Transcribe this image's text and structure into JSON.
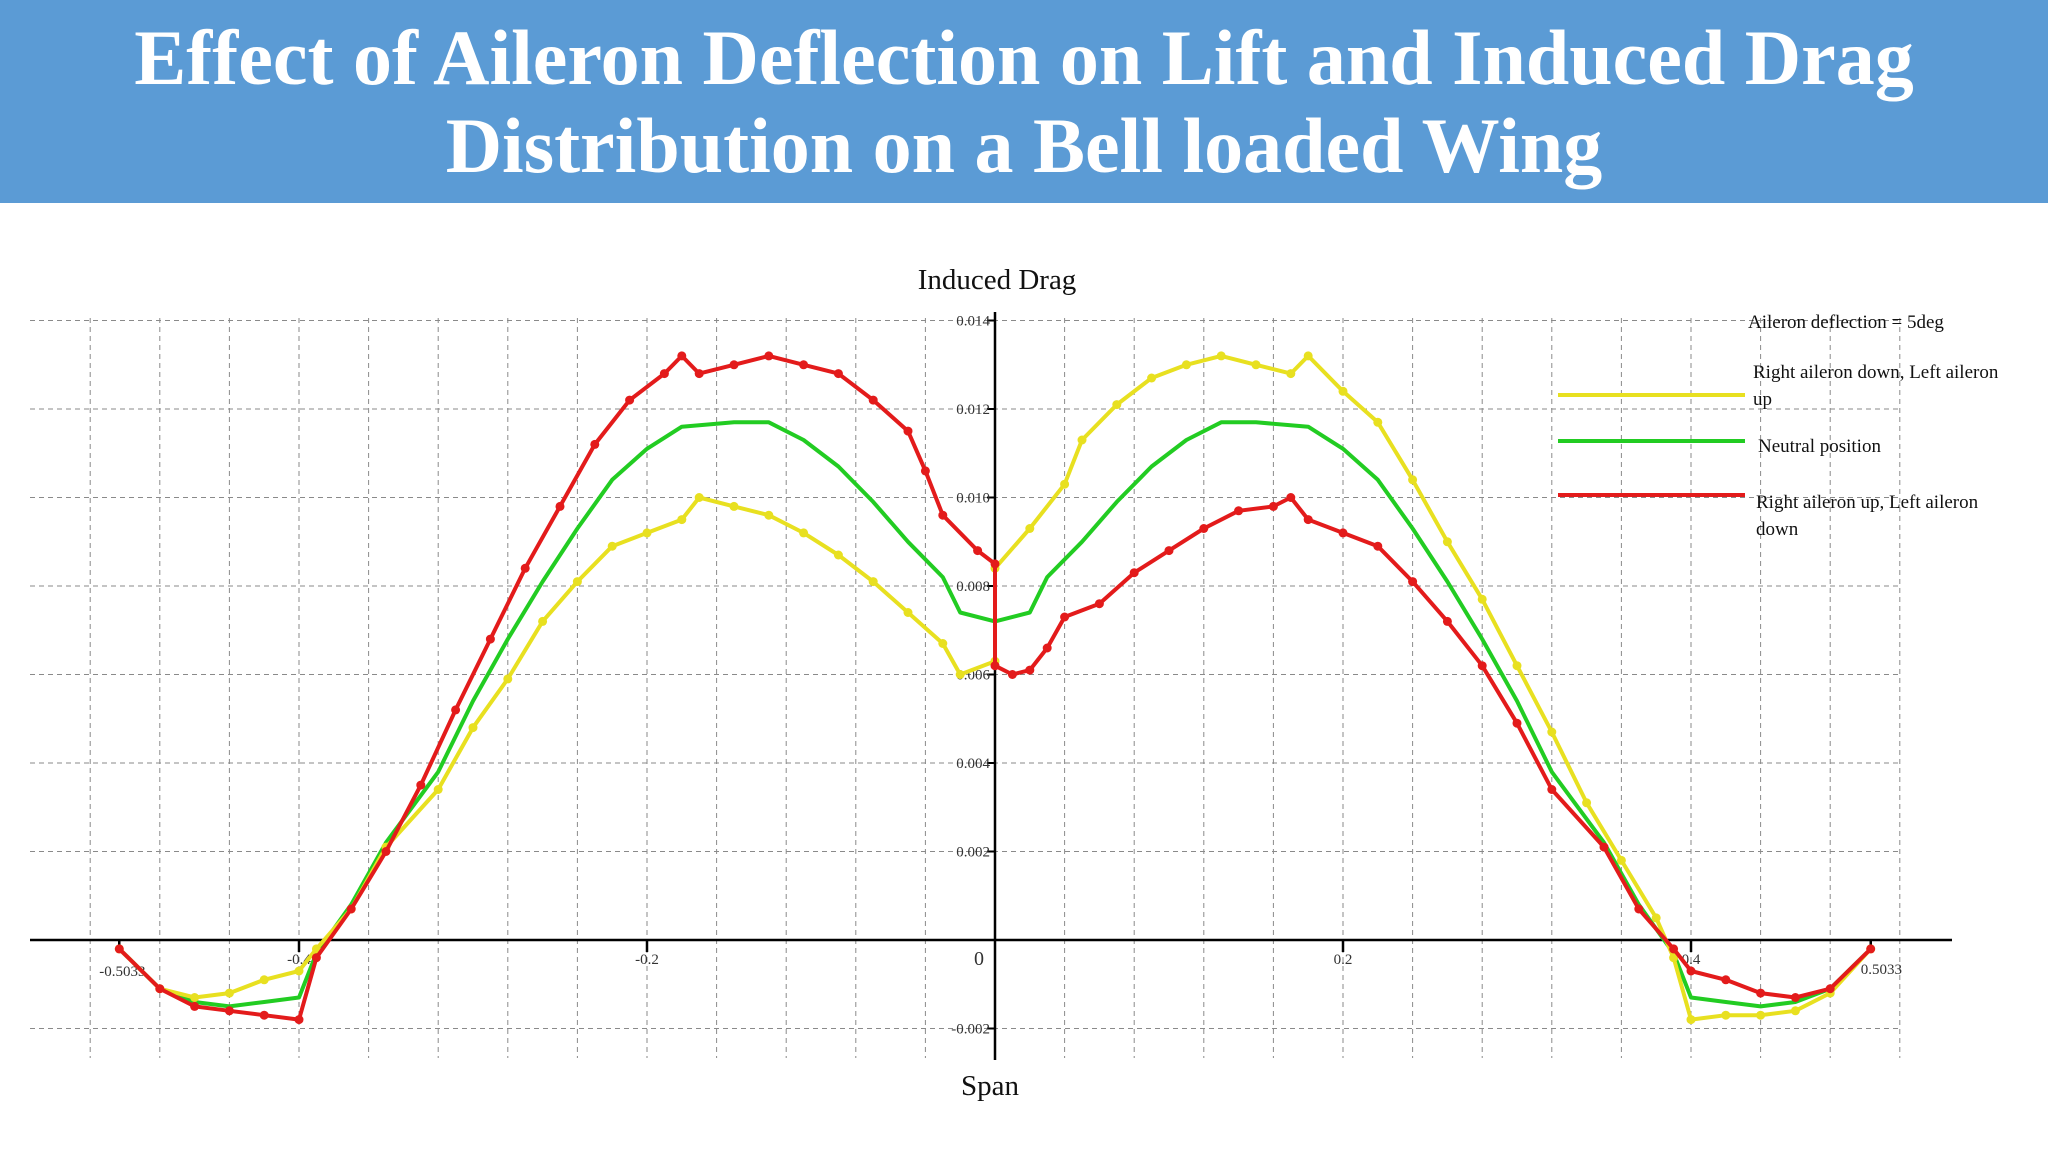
{
  "header": {
    "title_line1": "Effect of Aileron Deflection on Lift and Induced Drag",
    "title_line2": "Distribution on a Bell loaded Wing"
  },
  "chart_data": {
    "type": "line",
    "title": "Induced Drag",
    "xlabel": "Span",
    "ylabel": "",
    "xlim": [
      -0.5033,
      0.5033
    ],
    "ylim": [
      -0.002,
      0.014
    ],
    "x_ticks": [
      -0.5033,
      -0.4,
      -0.2,
      0,
      0.2,
      0.4,
      0.5033
    ],
    "x_tick_labels": [
      "-0.5033",
      "-0.4",
      "-0.2",
      "0",
      "0.2",
      "0.4",
      "0.5033"
    ],
    "y_ticks": [
      -0.002,
      0.002,
      0.004,
      0.006,
      0.008,
      0.01,
      0.012,
      0.014
    ],
    "y_tick_labels": [
      "-0.002",
      "0.002",
      "0.004",
      "0.006",
      "0.008",
      "0.010",
      "0.012",
      "0.014"
    ],
    "grid": true,
    "legend_placement": "right",
    "legend_note": "Aileron deflection = 5deg",
    "series": [
      {
        "name": "Right aileron down, Left aileron up",
        "color": "#e8e020",
        "markers": true,
        "points": [
          [
            -0.5033,
            -0.0002
          ],
          [
            -0.48,
            -0.0011
          ],
          [
            -0.46,
            -0.0013
          ],
          [
            -0.44,
            -0.0012
          ],
          [
            -0.42,
            -0.0009
          ],
          [
            -0.4,
            -0.0007
          ],
          [
            -0.39,
            -0.0002
          ],
          [
            -0.37,
            0.0007
          ],
          [
            -0.35,
            0.0021
          ],
          [
            -0.32,
            0.0034
          ],
          [
            -0.3,
            0.0048
          ],
          [
            -0.28,
            0.0059
          ],
          [
            -0.26,
            0.0072
          ],
          [
            -0.24,
            0.0081
          ],
          [
            -0.22,
            0.0089
          ],
          [
            -0.2,
            0.0092
          ],
          [
            -0.18,
            0.0095
          ],
          [
            -0.17,
            0.01
          ],
          [
            -0.15,
            0.0098
          ],
          [
            -0.13,
            0.0096
          ],
          [
            -0.11,
            0.0092
          ],
          [
            -0.09,
            0.0087
          ],
          [
            -0.07,
            0.0081
          ],
          [
            -0.05,
            0.0074
          ],
          [
            -0.03,
            0.0067
          ],
          [
            -0.02,
            0.006
          ],
          [
            0.0,
            0.0063
          ],
          [
            0.0,
            0.0084
          ],
          [
            0.02,
            0.0093
          ],
          [
            0.04,
            0.0103
          ],
          [
            0.05,
            0.0113
          ],
          [
            0.07,
            0.0121
          ],
          [
            0.09,
            0.0127
          ],
          [
            0.11,
            0.013
          ],
          [
            0.13,
            0.0132
          ],
          [
            0.15,
            0.013
          ],
          [
            0.17,
            0.0128
          ],
          [
            0.18,
            0.0132
          ],
          [
            0.2,
            0.0124
          ],
          [
            0.22,
            0.0117
          ],
          [
            0.24,
            0.0104
          ],
          [
            0.26,
            0.009
          ],
          [
            0.28,
            0.0077
          ],
          [
            0.3,
            0.0062
          ],
          [
            0.32,
            0.0047
          ],
          [
            0.34,
            0.0031
          ],
          [
            0.36,
            0.0018
          ],
          [
            0.38,
            0.0005
          ],
          [
            0.39,
            -0.0004
          ],
          [
            0.4,
            -0.0018
          ],
          [
            0.42,
            -0.0017
          ],
          [
            0.44,
            -0.0017
          ],
          [
            0.46,
            -0.0016
          ],
          [
            0.48,
            -0.0012
          ],
          [
            0.5033,
            -0.0002
          ]
        ]
      },
      {
        "name": "Neutral position",
        "color": "#22cc22",
        "markers": false,
        "points": [
          [
            -0.5033,
            -0.0002
          ],
          [
            -0.48,
            -0.0011
          ],
          [
            -0.46,
            -0.0014
          ],
          [
            -0.44,
            -0.0015
          ],
          [
            -0.42,
            -0.0014
          ],
          [
            -0.4,
            -0.0013
          ],
          [
            -0.39,
            -0.0003
          ],
          [
            -0.37,
            0.0008
          ],
          [
            -0.35,
            0.0022
          ],
          [
            -0.32,
            0.0038
          ],
          [
            -0.3,
            0.0054
          ],
          [
            -0.28,
            0.0068
          ],
          [
            -0.26,
            0.0081
          ],
          [
            -0.24,
            0.0093
          ],
          [
            -0.22,
            0.0104
          ],
          [
            -0.2,
            0.0111
          ],
          [
            -0.18,
            0.0116
          ],
          [
            -0.15,
            0.0117
          ],
          [
            -0.13,
            0.0117
          ],
          [
            -0.11,
            0.0113
          ],
          [
            -0.09,
            0.0107
          ],
          [
            -0.07,
            0.0099
          ],
          [
            -0.05,
            0.009
          ],
          [
            -0.03,
            0.0082
          ],
          [
            -0.02,
            0.0074
          ],
          [
            0.0,
            0.0072
          ],
          [
            0.02,
            0.0074
          ],
          [
            0.03,
            0.0082
          ],
          [
            0.05,
            0.009
          ],
          [
            0.07,
            0.0099
          ],
          [
            0.09,
            0.0107
          ],
          [
            0.11,
            0.0113
          ],
          [
            0.13,
            0.0117
          ],
          [
            0.15,
            0.0117
          ],
          [
            0.18,
            0.0116
          ],
          [
            0.2,
            0.0111
          ],
          [
            0.22,
            0.0104
          ],
          [
            0.24,
            0.0093
          ],
          [
            0.26,
            0.0081
          ],
          [
            0.28,
            0.0068
          ],
          [
            0.3,
            0.0054
          ],
          [
            0.32,
            0.0038
          ],
          [
            0.35,
            0.0022
          ],
          [
            0.37,
            0.0008
          ],
          [
            0.39,
            -0.0003
          ],
          [
            0.4,
            -0.0013
          ],
          [
            0.42,
            -0.0014
          ],
          [
            0.44,
            -0.0015
          ],
          [
            0.46,
            -0.0014
          ],
          [
            0.48,
            -0.0011
          ],
          [
            0.5033,
            -0.0002
          ]
        ]
      },
      {
        "name": "Right aileron up, Left aileron down",
        "color": "#e31b1b",
        "markers": true,
        "points": [
          [
            -0.5033,
            -0.0002
          ],
          [
            -0.48,
            -0.0011
          ],
          [
            -0.46,
            -0.0015
          ],
          [
            -0.44,
            -0.0016
          ],
          [
            -0.42,
            -0.0017
          ],
          [
            -0.4,
            -0.0018
          ],
          [
            -0.39,
            -0.0004
          ],
          [
            -0.37,
            0.0007
          ],
          [
            -0.35,
            0.002
          ],
          [
            -0.33,
            0.0035
          ],
          [
            -0.31,
            0.0052
          ],
          [
            -0.29,
            0.0068
          ],
          [
            -0.27,
            0.0084
          ],
          [
            -0.25,
            0.0098
          ],
          [
            -0.23,
            0.0112
          ],
          [
            -0.21,
            0.0122
          ],
          [
            -0.19,
            0.0128
          ],
          [
            -0.18,
            0.0132
          ],
          [
            -0.17,
            0.0128
          ],
          [
            -0.15,
            0.013
          ],
          [
            -0.13,
            0.0132
          ],
          [
            -0.11,
            0.013
          ],
          [
            -0.09,
            0.0128
          ],
          [
            -0.07,
            0.0122
          ],
          [
            -0.05,
            0.0115
          ],
          [
            -0.04,
            0.0106
          ],
          [
            -0.03,
            0.0096
          ],
          [
            -0.01,
            0.0088
          ],
          [
            0.0,
            0.0085
          ],
          [
            0.0,
            0.0062
          ],
          [
            0.01,
            0.006
          ],
          [
            0.02,
            0.0061
          ],
          [
            0.03,
            0.0066
          ],
          [
            0.04,
            0.0073
          ],
          [
            0.06,
            0.0076
          ],
          [
            0.08,
            0.0083
          ],
          [
            0.1,
            0.0088
          ],
          [
            0.12,
            0.0093
          ],
          [
            0.14,
            0.0097
          ],
          [
            0.16,
            0.0098
          ],
          [
            0.17,
            0.01
          ],
          [
            0.18,
            0.0095
          ],
          [
            0.2,
            0.0092
          ],
          [
            0.22,
            0.0089
          ],
          [
            0.24,
            0.0081
          ],
          [
            0.26,
            0.0072
          ],
          [
            0.28,
            0.0062
          ],
          [
            0.3,
            0.0049
          ],
          [
            0.32,
            0.0034
          ],
          [
            0.35,
            0.0021
          ],
          [
            0.37,
            0.0007
          ],
          [
            0.39,
            -0.0002
          ],
          [
            0.4,
            -0.0007
          ],
          [
            0.42,
            -0.0009
          ],
          [
            0.44,
            -0.0012
          ],
          [
            0.46,
            -0.0013
          ],
          [
            0.48,
            -0.0011
          ],
          [
            0.5033,
            -0.0002
          ]
        ]
      }
    ]
  }
}
